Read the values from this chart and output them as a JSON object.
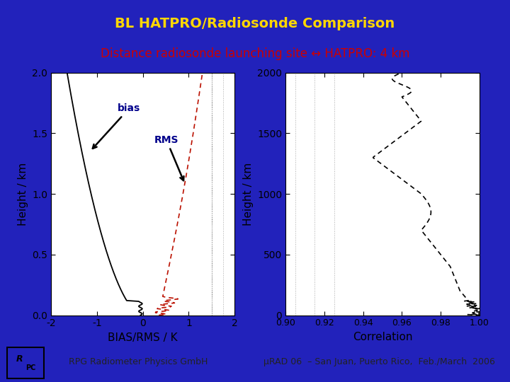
{
  "title": "BL HATPRO/Radiosonde Comparison",
  "subtitle": "Distance radiosonde launching site ↔ HATPRO: 4 km",
  "title_bg": "#1c1c5e",
  "title_color": "#ffd700",
  "subtitle_color": "#cc0000",
  "bg_color": "#2222bb",
  "plot_bg": "#ffffff",
  "footer_text_left": "RPG Radiometer Physics GmbH",
  "footer_text_right": "μRAD 06  – San Juan, Puerto Rico,  Feb./March  2006",
  "footer_bg": "#c8c8c8",
  "xlabel_left": "BIAS/RMS / K",
  "xlabel_right": "Correlation",
  "ylabel": "Height / km",
  "xlim_left": [
    -2,
    2
  ],
  "ylim_left": [
    0.0,
    2.0
  ],
  "xlim_right": [
    0.9,
    1.0
  ],
  "ylim_right": [
    0,
    2000
  ],
  "xticks_left": [
    -2,
    -1,
    0,
    1,
    2
  ],
  "yticks_left": [
    0.0,
    0.5,
    1.0,
    1.5,
    2.0
  ],
  "xticks_right": [
    0.9,
    0.92,
    0.94,
    0.96,
    0.98,
    1.0
  ],
  "yticks_right": [
    0,
    500,
    1000,
    1500,
    2000
  ],
  "bias_label": "bias",
  "rms_label": "RMS",
  "label_color": "#00008b"
}
